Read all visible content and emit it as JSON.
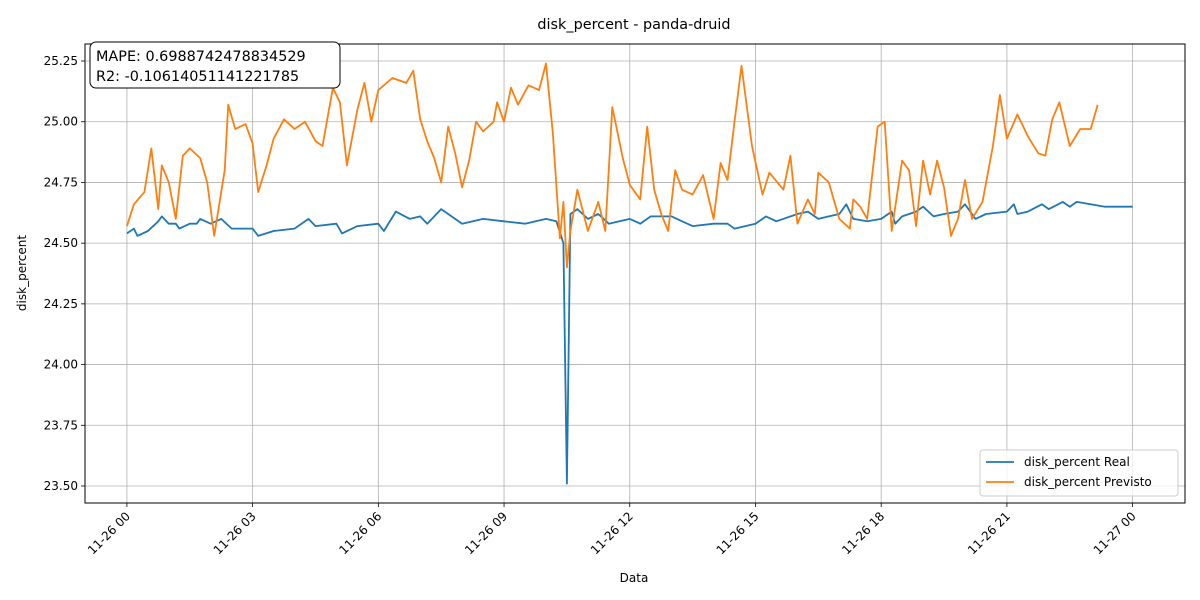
{
  "chart_data": {
    "type": "line",
    "title": "disk_percent - panda-druid",
    "xlabel": "Data",
    "ylabel": "disk_percent",
    "x_ticks": [
      "11-26 00",
      "11-26 03",
      "11-26 06",
      "11-26 09",
      "11-26 12",
      "11-26 15",
      "11-26 18",
      "11-26 21",
      "11-27 00"
    ],
    "x_range": [
      "11-25 23:00",
      "11-27 01:15"
    ],
    "y_ticks": [
      23.5,
      23.75,
      24.0,
      24.25,
      24.5,
      24.75,
      25.0,
      25.25
    ],
    "ylim": [
      23.43,
      25.32
    ],
    "grid": true,
    "legend_position": "lower-right",
    "annotation": {
      "line1": "MAPE: 0.6988742478834529",
      "line2": "R2: -0.10614051141221785"
    },
    "series": [
      {
        "name": "disk_percent Real",
        "color": "#1f77b4",
        "points": [
          [
            "11-26 00:00",
            24.54
          ],
          [
            "11-26 00:10",
            24.56
          ],
          [
            "11-26 00:15",
            24.53
          ],
          [
            "11-26 00:30",
            24.55
          ],
          [
            "11-26 00:45",
            24.59
          ],
          [
            "11-26 00:50",
            24.61
          ],
          [
            "11-26 01:00",
            24.58
          ],
          [
            "11-26 01:10",
            24.58
          ],
          [
            "11-26 01:15",
            24.56
          ],
          [
            "11-26 01:30",
            24.58
          ],
          [
            "11-26 01:40",
            24.58
          ],
          [
            "11-26 01:45",
            24.6
          ],
          [
            "11-26 02:00",
            24.58
          ],
          [
            "11-26 02:15",
            24.6
          ],
          [
            "11-26 02:30",
            24.56
          ],
          [
            "11-26 03:00",
            24.56
          ],
          [
            "11-26 03:08",
            24.53
          ],
          [
            "11-26 03:30",
            24.55
          ],
          [
            "11-26 04:00",
            24.56
          ],
          [
            "11-26 04:20",
            24.6
          ],
          [
            "11-26 04:30",
            24.57
          ],
          [
            "11-26 05:00",
            24.58
          ],
          [
            "11-26 05:08",
            24.54
          ],
          [
            "11-26 05:30",
            24.57
          ],
          [
            "11-26 06:00",
            24.58
          ],
          [
            "11-26 06:08",
            24.55
          ],
          [
            "11-26 06:25",
            24.63
          ],
          [
            "11-26 06:45",
            24.6
          ],
          [
            "11-26 07:00",
            24.61
          ],
          [
            "11-26 07:10",
            24.58
          ],
          [
            "11-26 07:30",
            24.64
          ],
          [
            "11-26 08:00",
            24.58
          ],
          [
            "11-26 08:30",
            24.6
          ],
          [
            "11-26 09:00",
            24.59
          ],
          [
            "11-26 09:30",
            24.58
          ],
          [
            "11-26 10:00",
            24.6
          ],
          [
            "11-26 10:15",
            24.59
          ],
          [
            "11-26 10:25",
            24.5
          ],
          [
            "11-26 10:30",
            23.51
          ],
          [
            "11-26 10:35",
            24.62
          ],
          [
            "11-26 10:45",
            24.64
          ],
          [
            "11-26 11:00",
            24.6
          ],
          [
            "11-26 11:15",
            24.62
          ],
          [
            "11-26 11:30",
            24.58
          ],
          [
            "11-26 12:00",
            24.6
          ],
          [
            "11-26 12:15",
            24.58
          ],
          [
            "11-26 12:30",
            24.61
          ],
          [
            "11-26 13:00",
            24.61
          ],
          [
            "11-26 13:15",
            24.59
          ],
          [
            "11-26 13:30",
            24.57
          ],
          [
            "11-26 14:00",
            24.58
          ],
          [
            "11-26 14:20",
            24.58
          ],
          [
            "11-26 14:30",
            24.56
          ],
          [
            "11-26 15:00",
            24.58
          ],
          [
            "11-26 15:15",
            24.61
          ],
          [
            "11-26 15:30",
            24.59
          ],
          [
            "11-26 16:00",
            24.62
          ],
          [
            "11-26 16:15",
            24.63
          ],
          [
            "11-26 16:30",
            24.6
          ],
          [
            "11-26 16:45",
            24.61
          ],
          [
            "11-26 17:00",
            24.62
          ],
          [
            "11-26 17:10",
            24.66
          ],
          [
            "11-26 17:20",
            24.6
          ],
          [
            "11-26 17:40",
            24.59
          ],
          [
            "11-26 18:00",
            24.6
          ],
          [
            "11-26 18:15",
            24.63
          ],
          [
            "11-26 18:20",
            24.58
          ],
          [
            "11-26 18:30",
            24.61
          ],
          [
            "11-26 18:50",
            24.63
          ],
          [
            "11-26 19:00",
            24.65
          ],
          [
            "11-26 19:15",
            24.61
          ],
          [
            "11-26 19:30",
            24.62
          ],
          [
            "11-26 19:50",
            24.63
          ],
          [
            "11-26 20:00",
            24.66
          ],
          [
            "11-26 20:15",
            24.6
          ],
          [
            "11-26 20:30",
            24.62
          ],
          [
            "11-26 21:00",
            24.63
          ],
          [
            "11-26 21:10",
            24.66
          ],
          [
            "11-26 21:15",
            24.62
          ],
          [
            "11-26 21:30",
            24.63
          ],
          [
            "11-26 21:50",
            24.66
          ],
          [
            "11-26 22:00",
            24.64
          ],
          [
            "11-26 22:20",
            24.67
          ],
          [
            "11-26 22:30",
            24.65
          ],
          [
            "11-26 22:40",
            24.67
          ],
          [
            "11-26 23:00",
            24.66
          ],
          [
            "11-26 23:20",
            24.65
          ],
          [
            "11-26 23:45",
            24.65
          ],
          [
            "11-27 00:00",
            24.65
          ]
        ]
      },
      {
        "name": "disk_percent Previsto",
        "color": "#ff7f0e",
        "points": [
          [
            "11-26 00:00",
            24.57
          ],
          [
            "11-26 00:10",
            24.66
          ],
          [
            "11-26 00:25",
            24.71
          ],
          [
            "11-26 00:35",
            24.89
          ],
          [
            "11-26 00:45",
            24.64
          ],
          [
            "11-26 00:50",
            24.82
          ],
          [
            "11-26 01:00",
            24.75
          ],
          [
            "11-26 01:10",
            24.6
          ],
          [
            "11-26 01:20",
            24.86
          ],
          [
            "11-26 01:30",
            24.89
          ],
          [
            "11-26 01:45",
            24.85
          ],
          [
            "11-26 01:55",
            24.75
          ],
          [
            "11-26 02:05",
            24.53
          ],
          [
            "11-26 02:20",
            24.8
          ],
          [
            "11-26 02:25",
            25.07
          ],
          [
            "11-26 02:35",
            24.97
          ],
          [
            "11-26 02:50",
            24.99
          ],
          [
            "11-26 03:00",
            24.91
          ],
          [
            "11-26 03:08",
            24.71
          ],
          [
            "11-26 03:20",
            24.82
          ],
          [
            "11-26 03:30",
            24.93
          ],
          [
            "11-26 03:45",
            25.01
          ],
          [
            "11-26 04:00",
            24.97
          ],
          [
            "11-26 04:15",
            25.0
          ],
          [
            "11-26 04:30",
            24.92
          ],
          [
            "11-26 04:40",
            24.9
          ],
          [
            "11-26 04:55",
            25.14
          ],
          [
            "11-26 05:05",
            25.08
          ],
          [
            "11-26 05:15",
            24.82
          ],
          [
            "11-26 05:30",
            25.05
          ],
          [
            "11-26 05:40",
            25.16
          ],
          [
            "11-26 05:50",
            25.0
          ],
          [
            "11-26 06:00",
            25.13
          ],
          [
            "11-26 06:20",
            25.18
          ],
          [
            "11-26 06:40",
            25.16
          ],
          [
            "11-26 06:50",
            25.21
          ],
          [
            "11-26 07:00",
            25.01
          ],
          [
            "11-26 07:10",
            24.92
          ],
          [
            "11-26 07:20",
            24.85
          ],
          [
            "11-26 07:30",
            24.75
          ],
          [
            "11-26 07:40",
            24.98
          ],
          [
            "11-26 07:50",
            24.87
          ],
          [
            "11-26 08:00",
            24.73
          ],
          [
            "11-26 08:10",
            24.84
          ],
          [
            "11-26 08:20",
            25.0
          ],
          [
            "11-26 08:30",
            24.96
          ],
          [
            "11-26 08:45",
            25.0
          ],
          [
            "11-26 08:50",
            25.08
          ],
          [
            "11-26 09:00",
            25.0
          ],
          [
            "11-26 09:10",
            25.14
          ],
          [
            "11-26 09:20",
            25.07
          ],
          [
            "11-26 09:35",
            25.15
          ],
          [
            "11-26 09:50",
            25.13
          ],
          [
            "11-26 10:00",
            25.24
          ],
          [
            "11-26 10:10",
            24.95
          ],
          [
            "11-26 10:20",
            24.52
          ],
          [
            "11-26 10:25",
            24.67
          ],
          [
            "11-26 10:30",
            24.4
          ],
          [
            "11-26 10:35",
            24.55
          ],
          [
            "11-26 10:45",
            24.72
          ],
          [
            "11-26 11:00",
            24.55
          ],
          [
            "11-26 11:15",
            24.67
          ],
          [
            "11-26 11:25",
            24.55
          ],
          [
            "11-26 11:35",
            25.06
          ],
          [
            "11-26 11:50",
            24.85
          ],
          [
            "11-26 12:00",
            24.74
          ],
          [
            "11-26 12:15",
            24.68
          ],
          [
            "11-26 12:25",
            24.98
          ],
          [
            "11-26 12:35",
            24.72
          ],
          [
            "11-26 12:45",
            24.62
          ],
          [
            "11-26 12:55",
            24.55
          ],
          [
            "11-26 13:05",
            24.8
          ],
          [
            "11-26 13:15",
            24.72
          ],
          [
            "11-26 13:30",
            24.7
          ],
          [
            "11-26 13:45",
            24.78
          ],
          [
            "11-26 14:00",
            24.6
          ],
          [
            "11-26 14:10",
            24.83
          ],
          [
            "11-26 14:20",
            24.76
          ],
          [
            "11-26 14:30",
            25.0
          ],
          [
            "11-26 14:40",
            25.23
          ],
          [
            "11-26 14:55",
            24.9
          ],
          [
            "11-26 15:10",
            24.7
          ],
          [
            "11-26 15:20",
            24.79
          ],
          [
            "11-26 15:40",
            24.72
          ],
          [
            "11-26 15:50",
            24.86
          ],
          [
            "11-26 16:00",
            24.58
          ],
          [
            "11-26 16:15",
            24.68
          ],
          [
            "11-26 16:25",
            24.62
          ],
          [
            "11-26 16:30",
            24.79
          ],
          [
            "11-26 16:45",
            24.75
          ],
          [
            "11-26 17:00",
            24.6
          ],
          [
            "11-26 17:15",
            24.56
          ],
          [
            "11-26 17:20",
            24.68
          ],
          [
            "11-26 17:30",
            24.65
          ],
          [
            "11-26 17:40",
            24.6
          ],
          [
            "11-26 17:55",
            24.98
          ],
          [
            "11-26 18:05",
            25.0
          ],
          [
            "11-26 18:15",
            24.55
          ],
          [
            "11-26 18:30",
            24.84
          ],
          [
            "11-26 18:40",
            24.8
          ],
          [
            "11-26 18:50",
            24.57
          ],
          [
            "11-26 19:00",
            24.84
          ],
          [
            "11-26 19:10",
            24.7
          ],
          [
            "11-26 19:20",
            24.84
          ],
          [
            "11-26 19:30",
            24.73
          ],
          [
            "11-26 19:40",
            24.53
          ],
          [
            "11-26 19:50",
            24.6
          ],
          [
            "11-26 20:00",
            24.76
          ],
          [
            "11-26 20:10",
            24.6
          ],
          [
            "11-26 20:25",
            24.67
          ],
          [
            "11-26 20:40",
            24.9
          ],
          [
            "11-26 20:50",
            25.11
          ],
          [
            "11-26 21:00",
            24.93
          ],
          [
            "11-26 21:15",
            25.03
          ],
          [
            "11-26 21:30",
            24.94
          ],
          [
            "11-26 21:45",
            24.87
          ],
          [
            "11-26 21:55",
            24.86
          ],
          [
            "11-26 22:05",
            25.01
          ],
          [
            "11-26 22:15",
            25.08
          ],
          [
            "11-26 22:30",
            24.9
          ],
          [
            "11-26 22:45",
            24.97
          ],
          [
            "11-26 23:00",
            24.97
          ],
          [
            "11-26 23:10",
            25.07
          ]
        ]
      }
    ]
  }
}
